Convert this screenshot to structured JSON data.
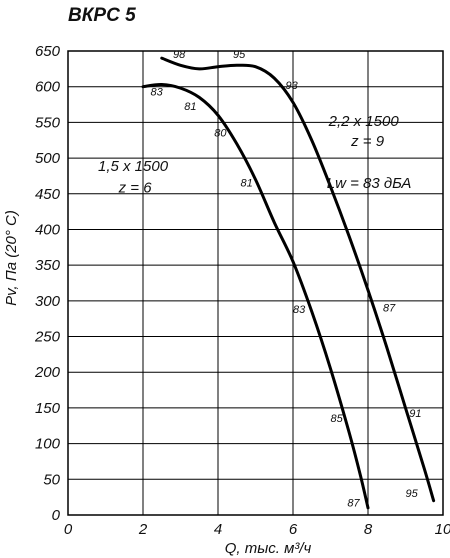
{
  "chart_data": {
    "type": "line",
    "title": "ВКРС 5",
    "xlabel": "Q, тыс. м³/ч",
    "ylabel": "Pv, Па (20° С)",
    "xlim": [
      0,
      10
    ],
    "ylim": [
      0,
      650
    ],
    "x_ticks": [
      "0",
      "2",
      "4",
      "6",
      "8",
      "10"
    ],
    "y_ticks": [
      "0",
      "50",
      "100",
      "150",
      "200",
      "250",
      "300",
      "350",
      "400",
      "450",
      "500",
      "550",
      "600",
      "650"
    ],
    "grid": true,
    "series": [
      {
        "name": "1,5 x 1500",
        "points": [
          {
            "x": 2.0,
            "y": 600
          },
          {
            "x": 2.5,
            "y": 603
          },
          {
            "x": 3.0,
            "y": 598
          },
          {
            "x": 3.5,
            "y": 585
          },
          {
            "x": 4.0,
            "y": 560
          },
          {
            "x": 4.5,
            "y": 520
          },
          {
            "x": 5.0,
            "y": 470
          },
          {
            "x": 5.5,
            "y": 410
          },
          {
            "x": 6.0,
            "y": 355
          },
          {
            "x": 6.5,
            "y": 285
          },
          {
            "x": 7.0,
            "y": 205
          },
          {
            "x": 7.5,
            "y": 115
          },
          {
            "x": 7.8,
            "y": 55
          },
          {
            "x": 8.0,
            "y": 10
          }
        ],
        "efficiency_labels": [
          {
            "x": 2.2,
            "y": 588,
            "text": "83"
          },
          {
            "x": 3.1,
            "y": 567,
            "text": "81"
          },
          {
            "x": 3.9,
            "y": 530,
            "text": "80"
          },
          {
            "x": 4.6,
            "y": 460,
            "text": "81"
          },
          {
            "x": 6.0,
            "y": 283,
            "text": "83"
          },
          {
            "x": 7.0,
            "y": 130,
            "text": "85"
          },
          {
            "x": 7.45,
            "y": 12,
            "text": "87"
          }
        ]
      },
      {
        "name": "2,2 x 1500",
        "points": [
          {
            "x": 2.5,
            "y": 640
          },
          {
            "x": 3.0,
            "y": 630
          },
          {
            "x": 3.5,
            "y": 625
          },
          {
            "x": 4.0,
            "y": 628
          },
          {
            "x": 4.5,
            "y": 630
          },
          {
            "x": 5.0,
            "y": 628
          },
          {
            "x": 5.5,
            "y": 612
          },
          {
            "x": 6.0,
            "y": 578
          },
          {
            "x": 6.5,
            "y": 525
          },
          {
            "x": 7.0,
            "y": 460
          },
          {
            "x": 7.5,
            "y": 390
          },
          {
            "x": 8.0,
            "y": 315
          },
          {
            "x": 8.5,
            "y": 235
          },
          {
            "x": 9.0,
            "y": 150
          },
          {
            "x": 9.5,
            "y": 65
          },
          {
            "x": 9.75,
            "y": 20
          }
        ],
        "efficiency_labels": [
          {
            "x": 2.8,
            "y": 640,
            "text": "98"
          },
          {
            "x": 4.4,
            "y": 640,
            "text": "95"
          },
          {
            "x": 5.8,
            "y": 597,
            "text": "93"
          },
          {
            "x": 8.4,
            "y": 285,
            "text": "87"
          },
          {
            "x": 9.1,
            "y": 137,
            "text": "91"
          },
          {
            "x": 9.0,
            "y": 25,
            "text": "95"
          }
        ]
      }
    ],
    "annotations": [
      {
        "x": 0.8,
        "y": 482,
        "text": "1,5 x 1500"
      },
      {
        "x": 1.35,
        "y": 452,
        "text": "z = 6"
      },
      {
        "x": 6.95,
        "y": 545,
        "text": "2,2 x 1500"
      },
      {
        "x": 7.55,
        "y": 517,
        "text": "z = 9"
      },
      {
        "x": 6.9,
        "y": 458,
        "text": "Lw = 83 дБА"
      }
    ]
  }
}
